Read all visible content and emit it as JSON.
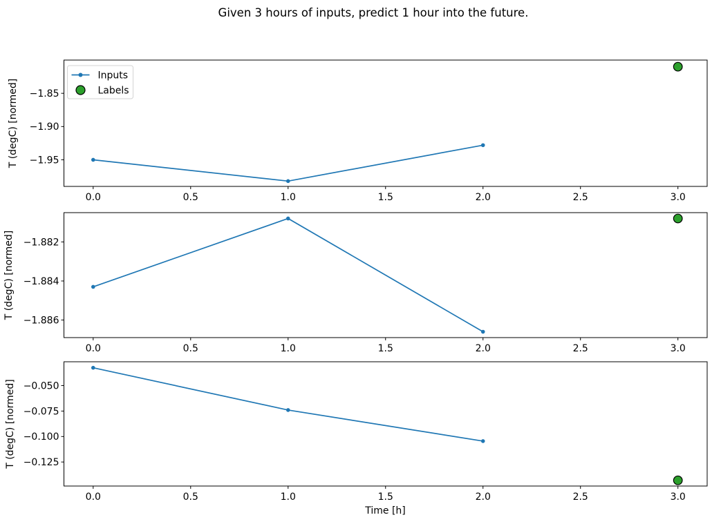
{
  "chart_data": {
    "type": "line",
    "title": "Given 3 hours of inputs, predict 1 hour into the future.",
    "xlabel": "Time [h]",
    "x": {
      "lim": [
        -0.15,
        3.15
      ],
      "ticks": [
        0,
        0.5,
        1,
        1.5,
        2,
        2.5,
        3
      ],
      "tick_labels": [
        "0.0",
        "0.5",
        "1.0",
        "1.5",
        "2.0",
        "2.5",
        "3.0"
      ]
    },
    "colors": {
      "inputs_line": "#1f77b4",
      "labels_fill": "#2ca02c",
      "labels_edge": "#000000",
      "spine": "#000000",
      "legend_border": "#d3d3d3"
    },
    "legend": {
      "entries": [
        "Inputs",
        "Labels"
      ],
      "position": "upper left",
      "subplot_index": 0
    },
    "subplots": [
      {
        "ylabel": "T (degC) [normed]",
        "ylim": [
          -1.99,
          -1.8
        ],
        "y_ticks": [
          -1.85,
          -1.9,
          -1.95
        ],
        "y_tick_labels": [
          "−1.85",
          "−1.90",
          "−1.95"
        ],
        "series": [
          {
            "name": "Inputs",
            "type": "line",
            "x": [
              0,
              1,
              2
            ],
            "y": [
              -1.95,
              -1.982,
              -1.928
            ]
          },
          {
            "name": "Labels",
            "type": "scatter",
            "x": [
              3
            ],
            "y": [
              -1.81
            ]
          }
        ]
      },
      {
        "ylabel": "T (degC) [normed]",
        "ylim": [
          -1.8869,
          -1.8805
        ],
        "y_ticks": [
          -1.882,
          -1.884,
          -1.886
        ],
        "y_tick_labels": [
          "−1.882",
          "−1.884",
          "−1.886"
        ],
        "series": [
          {
            "name": "Inputs",
            "type": "line",
            "x": [
              0,
              1,
              2
            ],
            "y": [
              -1.8843,
              -1.8808,
              -1.8866
            ]
          },
          {
            "name": "Labels",
            "type": "scatter",
            "x": [
              3
            ],
            "y": [
              -1.8808
            ]
          }
        ]
      },
      {
        "ylabel": "T (degC) [normed]",
        "ylim": [
          -0.1486,
          -0.0266
        ],
        "y_ticks": [
          -0.05,
          -0.075,
          -0.1,
          -0.125
        ],
        "y_tick_labels": [
          "−0.050",
          "−0.075",
          "−0.100",
          "−0.125"
        ],
        "series": [
          {
            "name": "Inputs",
            "type": "line",
            "x": [
              0,
              1,
              2
            ],
            "y": [
              -0.0325,
              -0.074,
              -0.1045
            ]
          },
          {
            "name": "Labels",
            "type": "scatter",
            "x": [
              3
            ],
            "y": [
              -0.143
            ]
          }
        ]
      }
    ]
  }
}
